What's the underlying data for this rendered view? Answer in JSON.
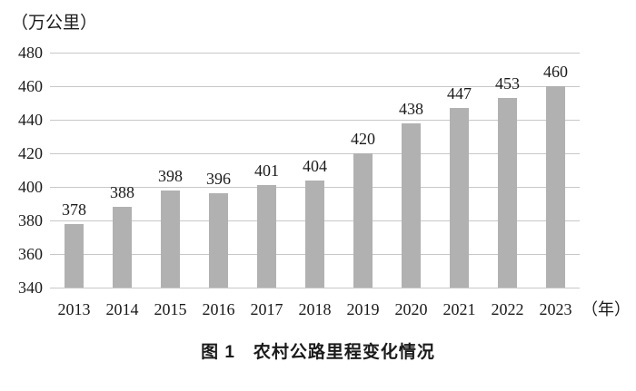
{
  "chart_data": {
    "type": "bar",
    "categories": [
      "2013",
      "2014",
      "2015",
      "2016",
      "2017",
      "2018",
      "2019",
      "2020",
      "2021",
      "2022",
      "2023"
    ],
    "values": [
      378,
      388,
      398,
      396,
      401,
      404,
      420,
      438,
      447,
      453,
      460
    ],
    "title": "图 1　农村公路里程变化情况",
    "y_unit_label": "（万公里）",
    "x_unit_label": "（年）",
    "xlabel": "",
    "ylabel": "",
    "ylim": [
      340,
      480
    ],
    "yticks": [
      340,
      360,
      380,
      400,
      420,
      440,
      460,
      480
    ],
    "grid": "horizontal-only",
    "legend": "none",
    "bar_color": "#b1b1b1",
    "grid_color": "#c8c8c8",
    "text_color": "#1a1a1a",
    "background_color": "#ffffff"
  }
}
